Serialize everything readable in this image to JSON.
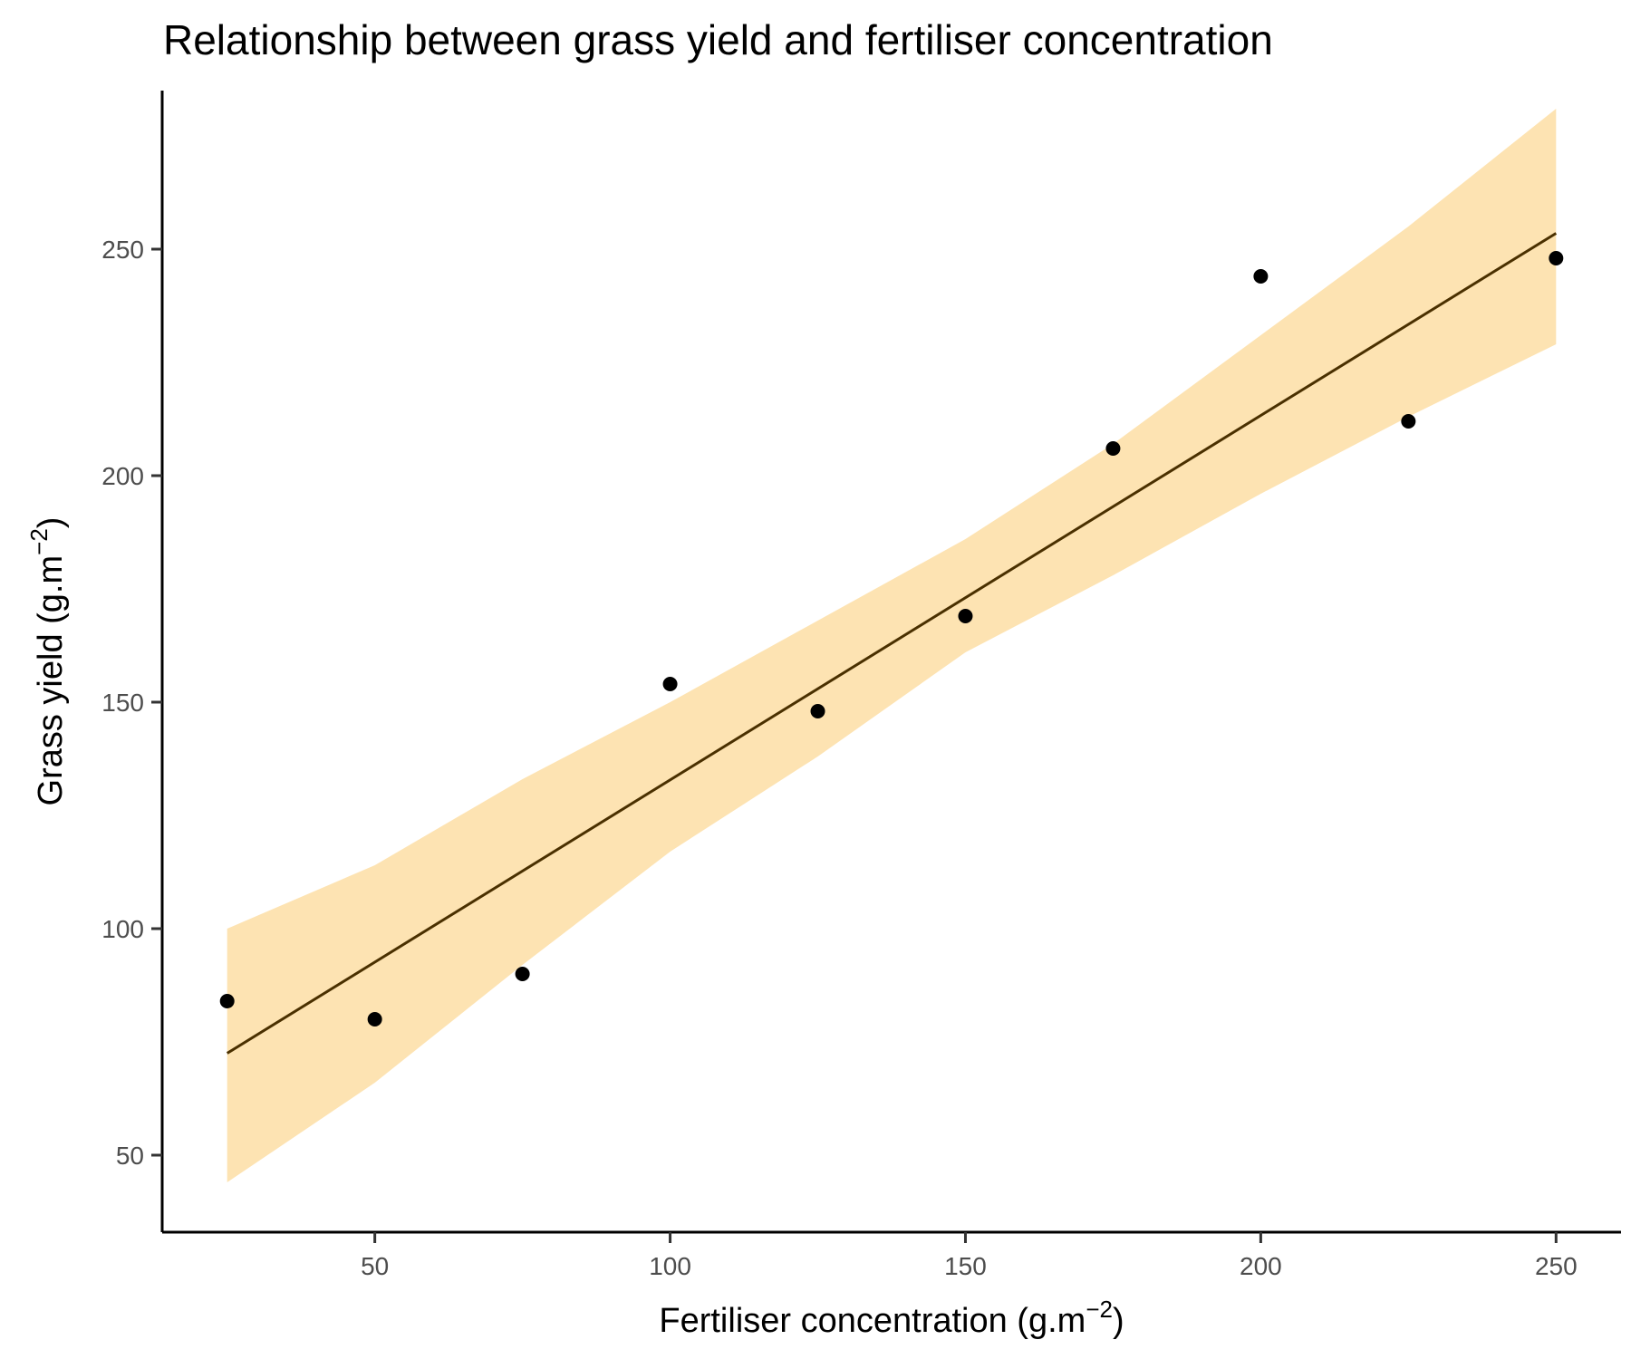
{
  "chart_data": {
    "type": "scatter",
    "title": "Relationship between grass yield and fertiliser concentration",
    "xlabel": "Fertiliser concentration (g.m",
    "xlabel_sup": "−2",
    "xlabel_close": ")",
    "ylabel": "Grass yield (g.m",
    "ylabel_sup": "−2",
    "ylabel_close": ")",
    "xlim": [
      14,
      261
    ],
    "ylim": [
      33,
      285
    ],
    "xticks": [
      50,
      100,
      150,
      200,
      250
    ],
    "xtick_labels": [
      "50",
      "100",
      "150",
      "200",
      "250"
    ],
    "yticks": [
      50,
      100,
      150,
      200,
      250
    ],
    "ytick_labels": [
      "50",
      "100",
      "150",
      "200",
      "250"
    ],
    "points": {
      "x": [
        25,
        50,
        75,
        100,
        125,
        150,
        175,
        200,
        225,
        250
      ],
      "y": [
        84,
        80,
        90,
        154,
        148,
        169,
        206,
        244,
        212,
        248
      ]
    },
    "fit_line": {
      "x": [
        25,
        250
      ],
      "y": [
        72.5,
        253.5
      ]
    },
    "confidence_band": {
      "x": [
        25,
        50,
        75,
        100,
        125,
        150,
        175,
        200,
        225,
        250
      ],
      "lower": [
        44,
        66,
        92,
        117,
        138,
        161,
        178,
        196,
        213,
        229
      ],
      "upper": [
        100,
        114,
        133,
        150,
        168,
        186,
        207,
        231,
        255,
        281
      ]
    },
    "colors": {
      "band": "#fde3b2",
      "line": "#4a3000",
      "points": "#000000"
    }
  }
}
